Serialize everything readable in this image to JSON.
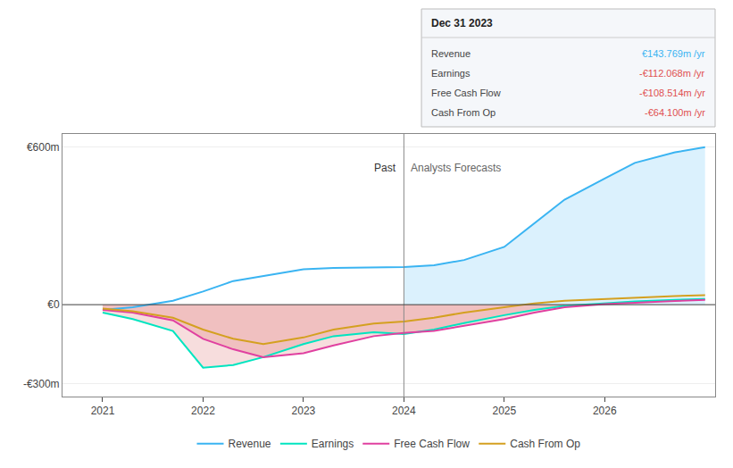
{
  "chart_data": {
    "type": "line",
    "x": [
      2021.0,
      2021.3,
      2021.7,
      2022.0,
      2022.3,
      2022.6,
      2023.0,
      2023.3,
      2023.7,
      2024.0,
      2024.3,
      2024.6,
      2025.0,
      2025.3,
      2025.6,
      2026.0,
      2026.3,
      2026.7,
      2027.0
    ],
    "series": [
      {
        "name": "Revenue",
        "color": "#3ab4f2",
        "values": [
          -20,
          -10,
          15,
          50,
          90,
          110,
          135,
          140,
          143,
          143,
          150,
          170,
          220,
          310,
          400,
          480,
          540,
          580,
          600
        ]
      },
      {
        "name": "Earnings",
        "color": "#00e5c0",
        "values": [
          -30,
          -55,
          -100,
          -240,
          -230,
          -200,
          -150,
          -120,
          -105,
          -112,
          -95,
          -70,
          -40,
          -20,
          -5,
          5,
          12,
          18,
          22
        ]
      },
      {
        "name": "Free Cash Flow",
        "color": "#e040a0",
        "values": [
          -20,
          -30,
          -60,
          -130,
          -170,
          -200,
          -185,
          -155,
          -120,
          -108,
          -100,
          -80,
          -55,
          -30,
          -10,
          2,
          8,
          14,
          18
        ]
      },
      {
        "name": "Cash From Op",
        "color": "#d4a020",
        "values": [
          -15,
          -25,
          -50,
          -95,
          -130,
          -150,
          -125,
          -95,
          -72,
          -64,
          -50,
          -30,
          -10,
          5,
          15,
          22,
          28,
          33,
          36
        ]
      }
    ],
    "xlim": [
      2020.6,
      2027.1
    ],
    "xticks": [
      2021,
      2022,
      2023,
      2024,
      2025,
      2026
    ],
    "ylim": [
      -350,
      650
    ],
    "yticks": [
      {
        "value": -300,
        "label": "-€300m"
      },
      {
        "value": 0,
        "label": "€0"
      },
      {
        "value": 600,
        "label": "€600m"
      }
    ],
    "grid": "y",
    "legend": "bottom",
    "divider_x": 2024.0,
    "annotations": [
      "Past",
      "Analysts Forecasts"
    ],
    "tooltip": {
      "title": "Dec 31 2023",
      "rows": [
        {
          "label": "Revenue",
          "value": "€143.769m /yr",
          "color": "#3ab4f2"
        },
        {
          "label": "Earnings",
          "value": "-€112.068m /yr",
          "color": "#e05050"
        },
        {
          "label": "Free Cash Flow",
          "value": "-€108.514m /yr",
          "color": "#e05050"
        },
        {
          "label": "Cash From Op",
          "value": "-€64.100m /yr",
          "color": "#e05050"
        }
      ]
    }
  }
}
